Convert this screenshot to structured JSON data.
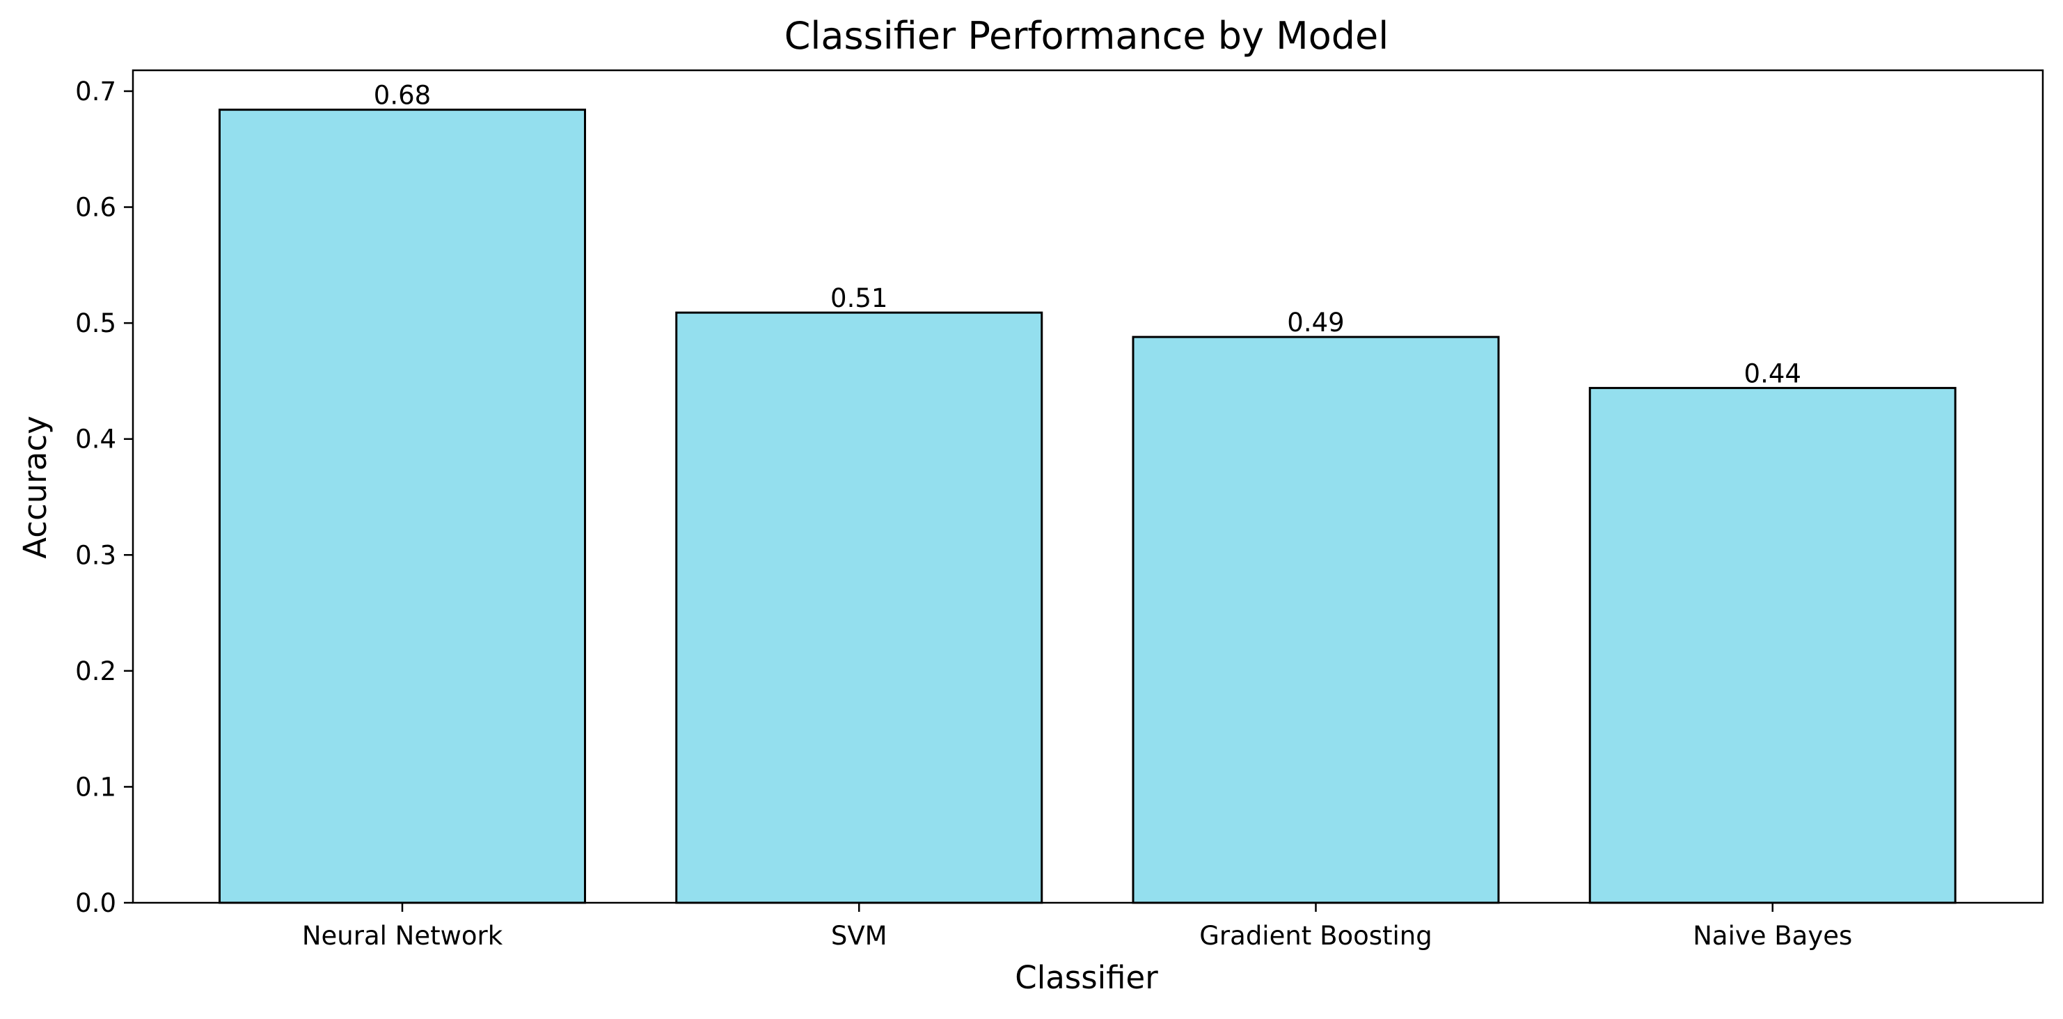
{
  "chart_data": {
    "type": "bar",
    "title": "Classifier Performance by Model",
    "xlabel": "Classifier",
    "ylabel": "Accuracy",
    "categories": [
      "Neural Network",
      "SVM",
      "Gradient Boosting",
      "Naive Bayes"
    ],
    "values": [
      0.684,
      0.509,
      0.488,
      0.444
    ],
    "value_labels": [
      "0.68",
      "0.51",
      "0.49",
      "0.44"
    ],
    "ylim": [
      0,
      0.718
    ],
    "yticks": [
      0.0,
      0.1,
      0.2,
      0.3,
      0.4,
      0.5,
      0.6,
      0.7
    ],
    "ytick_labels": [
      "0.0",
      "0.1",
      "0.2",
      "0.3",
      "0.4",
      "0.5",
      "0.6",
      "0.7"
    ],
    "grid": false,
    "legend": "none",
    "colors": {
      "bar_fill": "#94dfee",
      "bar_edge": "#000000",
      "axes": "#000000",
      "background": "#ffffff"
    }
  }
}
